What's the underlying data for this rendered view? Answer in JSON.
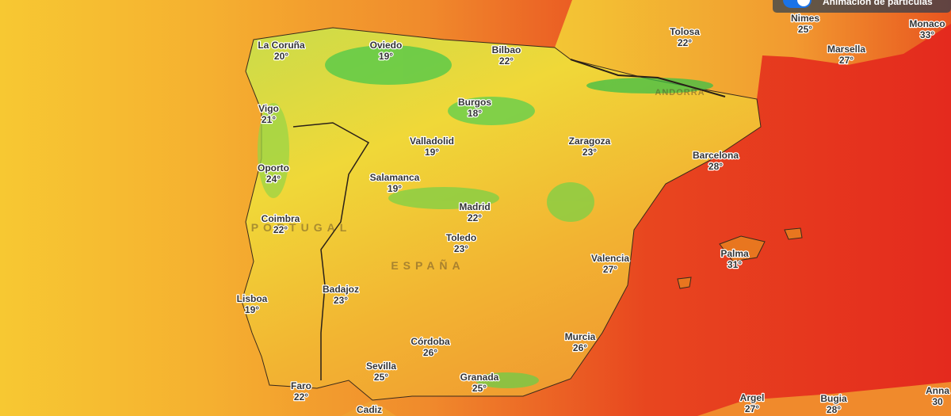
{
  "toggle": {
    "label": "Animación de partículas"
  },
  "regions": [
    "PORTUGAL",
    "ESPAÑA",
    "ANDORRA"
  ],
  "cities": [
    {
      "name": "La Coruña",
      "temp": "20°"
    },
    {
      "name": "Oviedo",
      "temp": "19°"
    },
    {
      "name": "Bilbao",
      "temp": "22°"
    },
    {
      "name": "Tolosa",
      "temp": "22°"
    },
    {
      "name": "Nimes",
      "temp": "25°"
    },
    {
      "name": "Monaco",
      "temp": "33°"
    },
    {
      "name": "Marsella",
      "temp": "27°"
    },
    {
      "name": "Vigo",
      "temp": "21°"
    },
    {
      "name": "Burgos",
      "temp": "18°"
    },
    {
      "name": "Valladolid",
      "temp": "19°"
    },
    {
      "name": "Zaragoza",
      "temp": "23°"
    },
    {
      "name": "Barcelona",
      "temp": "28°"
    },
    {
      "name": "Oporto",
      "temp": "24°"
    },
    {
      "name": "Salamanca",
      "temp": "19°"
    },
    {
      "name": "Madrid",
      "temp": "22°"
    },
    {
      "name": "Coimbra",
      "temp": "22°"
    },
    {
      "name": "Toledo",
      "temp": "23°"
    },
    {
      "name": "Valencia",
      "temp": "27°"
    },
    {
      "name": "Palma",
      "temp": "31°"
    },
    {
      "name": "Badajoz",
      "temp": "23°"
    },
    {
      "name": "Lisboa",
      "temp": "19°"
    },
    {
      "name": "Córdoba",
      "temp": "26°"
    },
    {
      "name": "Murcia",
      "temp": "26°"
    },
    {
      "name": "Sevilla",
      "temp": "25°"
    },
    {
      "name": "Granada",
      "temp": "25°"
    },
    {
      "name": "Faro",
      "temp": "22°"
    },
    {
      "name": "Cadiz"
    },
    {
      "name": "Argel",
      "temp": "27°"
    },
    {
      "name": "Bugia",
      "temp": "28°"
    },
    {
      "name": "Anna",
      "temp": "30"
    }
  ]
}
